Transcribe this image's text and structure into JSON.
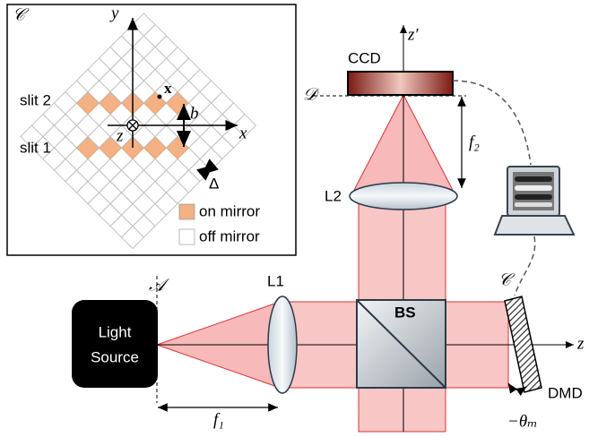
{
  "inset": {
    "label": "𝒞",
    "y_axis": "y",
    "x_axis": "x",
    "z_axis": "z",
    "slit_2": "slit 2",
    "slit_1": "slit 1",
    "point": "x",
    "b": "b",
    "delta": "Δ",
    "legend": [
      "on mirror",
      "off mirror"
    ]
  },
  "setup": {
    "light_source": [
      "Light",
      "Source"
    ],
    "plane_a": "𝒜",
    "l1": "L1",
    "bs": "BS",
    "plane_c": "𝒞",
    "z_axis": "z",
    "dmd": "DMD",
    "f1": "f₁",
    "theta": "−θₘ",
    "f2": "f₂",
    "l2": "L2",
    "ccd": "CCD",
    "plane_d": "𝒟",
    "z_prime": "z′"
  }
}
